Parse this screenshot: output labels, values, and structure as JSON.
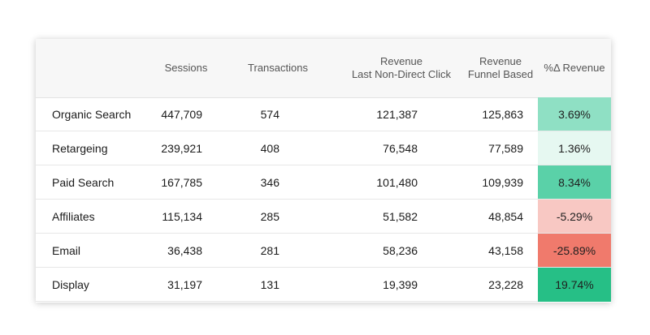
{
  "table": {
    "headers": {
      "sessions": "Sessions",
      "transactions": "Transactions",
      "rev_last_line1": "Revenue",
      "rev_last_line2": "Last Non-Direct Click",
      "rev_funnel_line1": "Revenue",
      "rev_funnel_line2": "Funnel Based",
      "delta": "%Δ Revenue"
    },
    "rows": [
      {
        "channel": "Organic Search",
        "sessions": "447,709",
        "transactions": "574",
        "rev_last": "121,387",
        "rev_funnel": "125,863",
        "delta": "3.69%",
        "delta_color": "#8fe0c4"
      },
      {
        "channel": "Retargeing",
        "sessions": "239,921",
        "transactions": "408",
        "rev_last": "76,548",
        "rev_funnel": "77,589",
        "delta": "1.36%",
        "delta_color": "#e6f8f1"
      },
      {
        "channel": "Paid Search",
        "sessions": "167,785",
        "transactions": "346",
        "rev_last": "101,480",
        "rev_funnel": "109,939",
        "delta": "8.34%",
        "delta_color": "#5ad1a8"
      },
      {
        "channel": "Affiliates",
        "sessions": "115,134",
        "transactions": "285",
        "rev_last": "51,582",
        "rev_funnel": "48,854",
        "delta": "-5.29%",
        "delta_color": "#f8c8c3"
      },
      {
        "channel": "Email",
        "sessions": "36,438",
        "transactions": "281",
        "rev_last": "58,236",
        "rev_funnel": "43,158",
        "delta": "-25.89%",
        "delta_color": "#f07a6c"
      },
      {
        "channel": "Display",
        "sessions": "31,197",
        "transactions": "131",
        "rev_last": "19,399",
        "rev_funnel": "23,228",
        "delta": "19.74%",
        "delta_color": "#26bf86"
      }
    ]
  }
}
